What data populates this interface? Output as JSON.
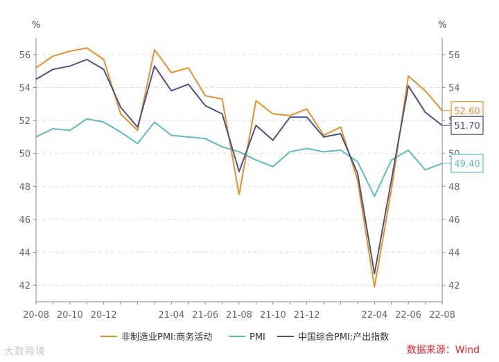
{
  "chart_data": {
    "type": "line",
    "title": "",
    "ylabel_left": "%",
    "ylabel_right": "%",
    "ylim": [
      41,
      57
    ],
    "yticks": [
      42,
      44,
      46,
      48,
      50,
      52,
      54,
      56
    ],
    "x": [
      "20-08",
      "20-09",
      "20-10",
      "20-11",
      "20-12",
      "21-01",
      "21-02",
      "21-03",
      "21-04",
      "21-05",
      "21-06",
      "21-07",
      "21-08",
      "21-09",
      "21-10",
      "21-11",
      "21-12",
      "22-01",
      "22-02",
      "22-03",
      "22-04",
      "22-05",
      "22-06",
      "22-07",
      "22-08"
    ],
    "xtick_labels": [
      "20-08",
      "20-10",
      "20-12",
      "21-04",
      "21-06",
      "21-08",
      "21-10",
      "21-12",
      "22-04",
      "22-06",
      "22-08"
    ],
    "series": [
      {
        "name": "非制造业PMI:商务活动",
        "color": "#e8902a",
        "values": [
          55.2,
          55.9,
          56.2,
          56.4,
          55.7,
          52.4,
          51.4,
          56.3,
          54.9,
          55.2,
          53.5,
          53.3,
          47.5,
          53.2,
          52.4,
          52.3,
          52.7,
          51.1,
          51.6,
          48.4,
          41.9,
          47.8,
          54.7,
          53.8,
          52.6
        ],
        "end_label": "52.60"
      },
      {
        "name": "PMI",
        "color": "#5cbcbc",
        "values": [
          51.0,
          51.5,
          51.4,
          52.1,
          51.9,
          51.3,
          50.6,
          51.9,
          51.1,
          51.0,
          50.9,
          50.4,
          50.1,
          49.6,
          49.2,
          50.1,
          50.3,
          50.1,
          50.2,
          49.5,
          47.4,
          49.6,
          50.2,
          49.0,
          49.4
        ],
        "end_label": "49.40"
      },
      {
        "name": "中国综合PMI:产出指数",
        "color": "#4a5283",
        "values": [
          54.5,
          55.1,
          55.3,
          55.7,
          55.1,
          52.8,
          51.6,
          55.3,
          53.8,
          54.2,
          52.9,
          52.4,
          48.9,
          51.7,
          50.8,
          52.2,
          52.2,
          51.0,
          51.2,
          48.8,
          42.7,
          48.4,
          54.1,
          52.5,
          51.7
        ],
        "end_label": "51.70"
      }
    ],
    "legend_position": "bottom",
    "grid": true
  },
  "source_text": "数据来源：Wind",
  "watermark_text": "大数跨境"
}
